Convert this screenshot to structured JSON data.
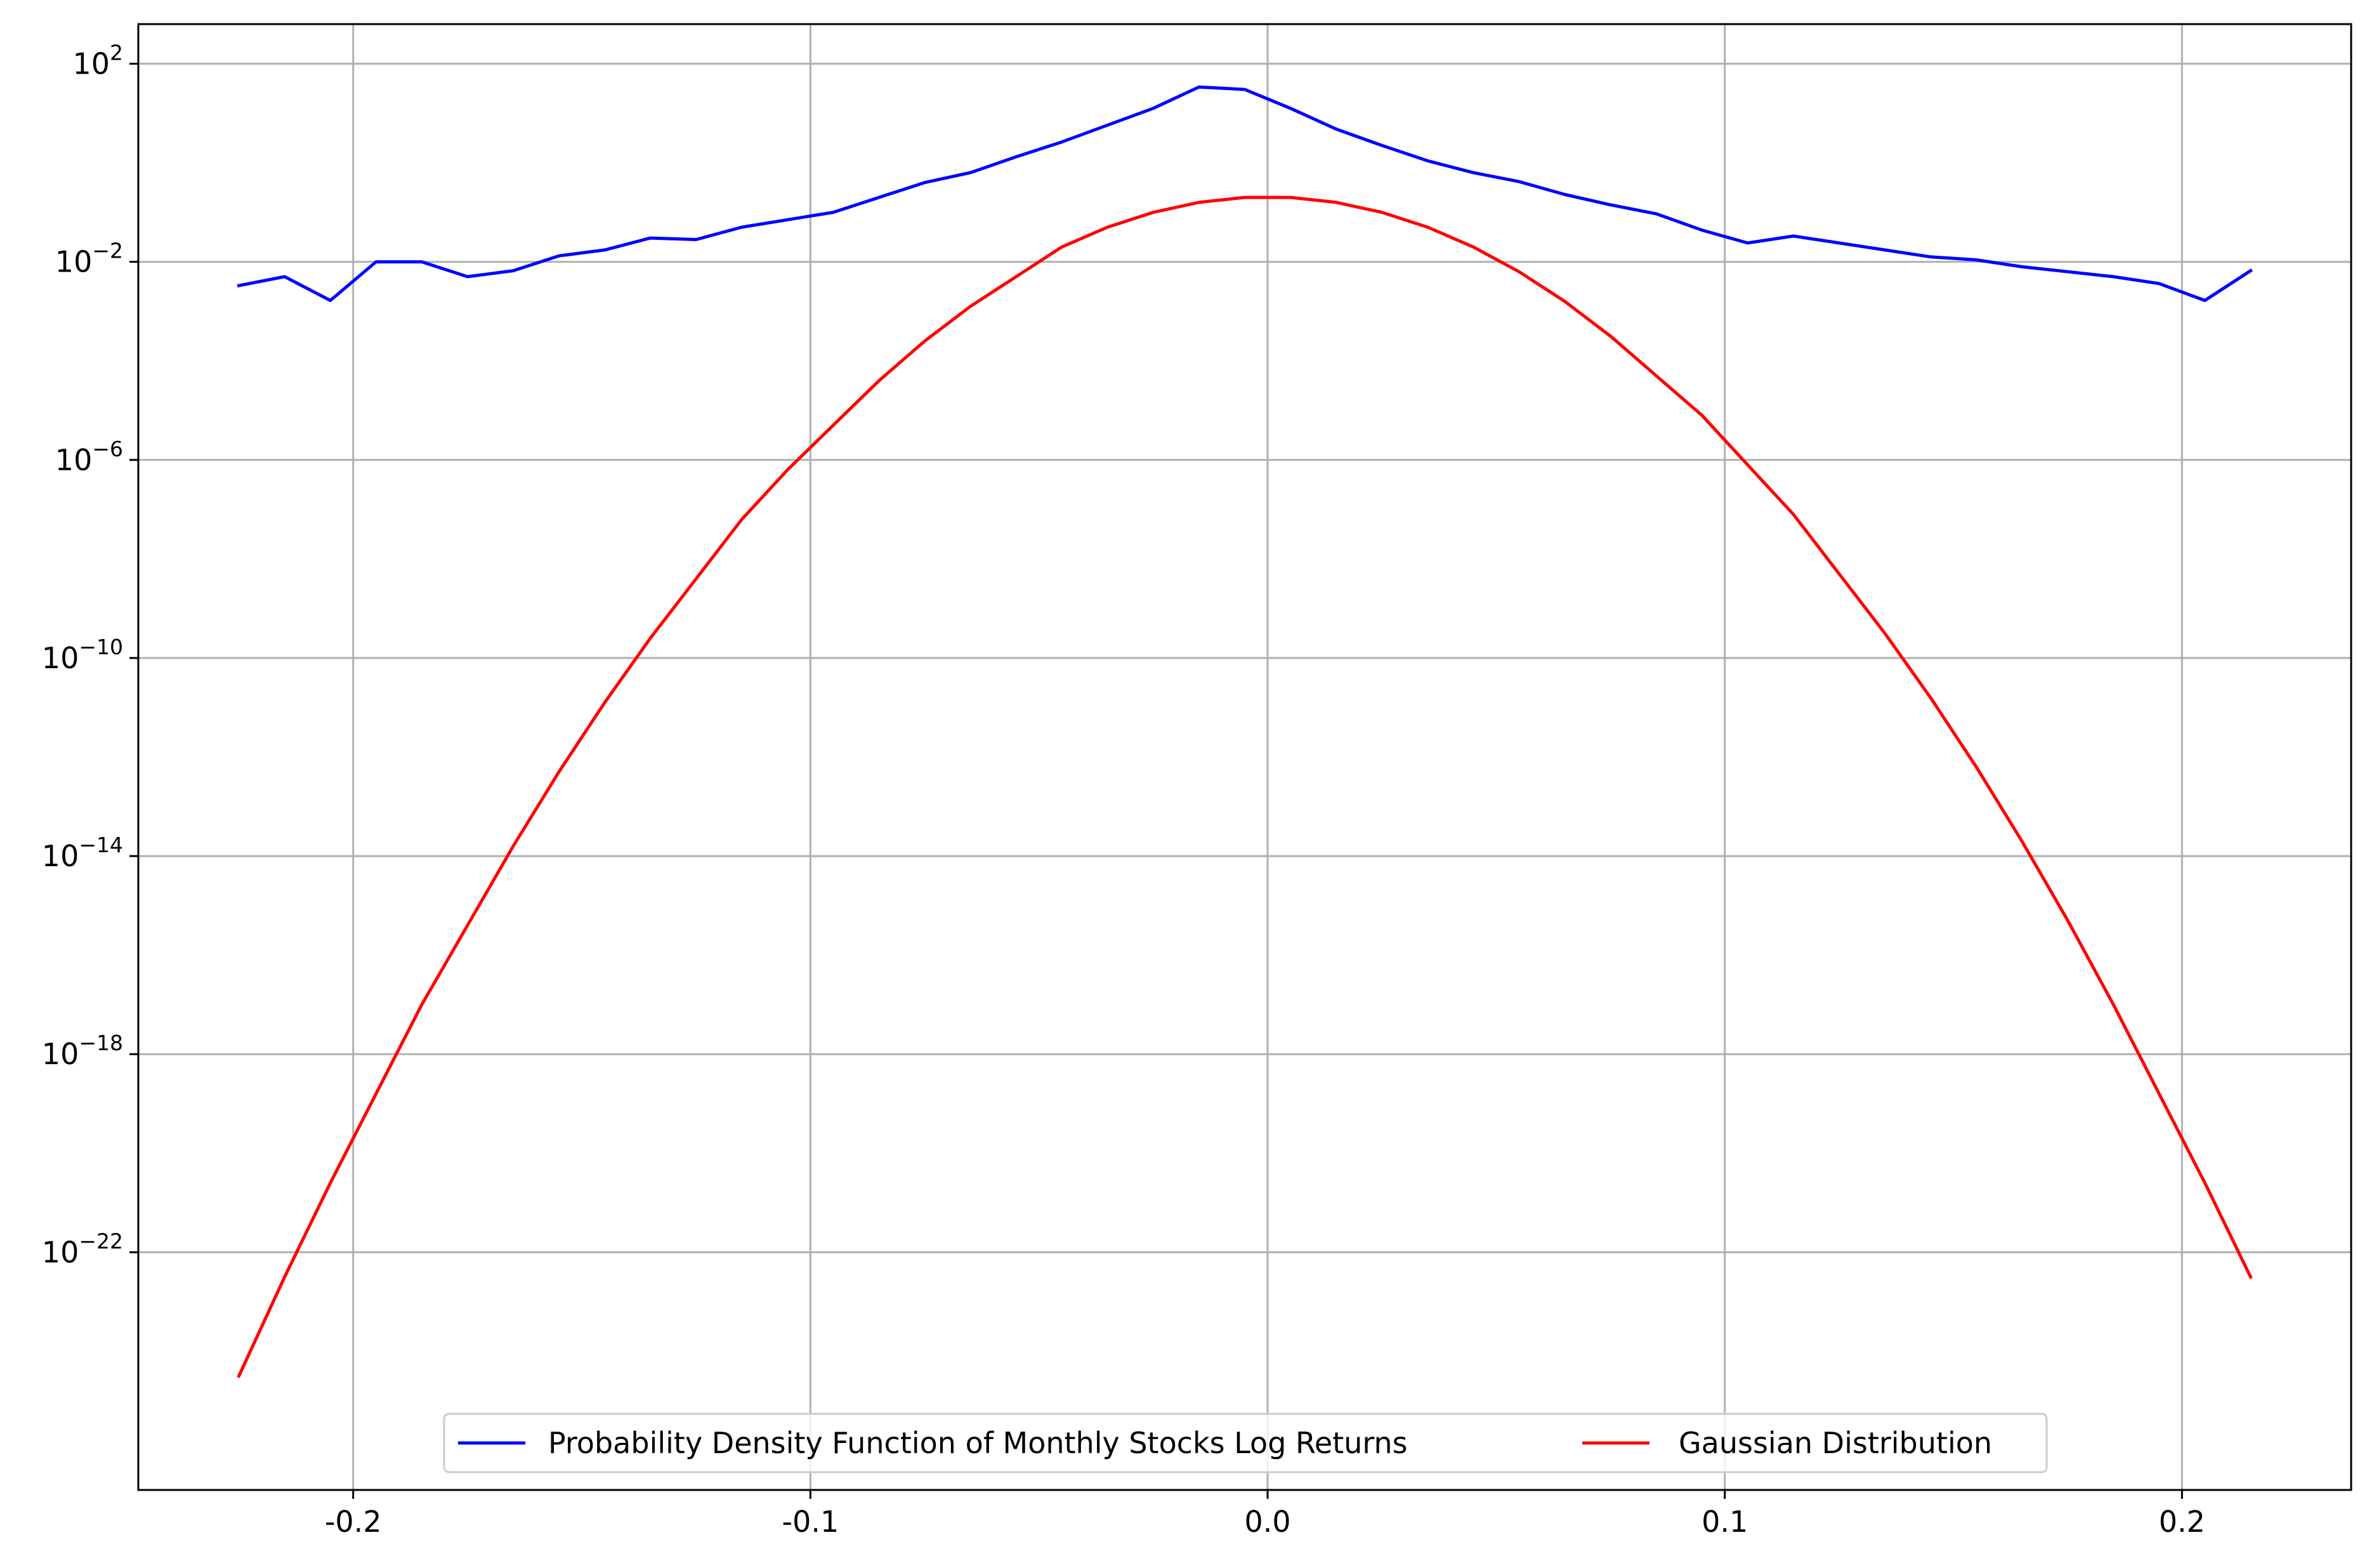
{
  "chart_data": {
    "type": "line",
    "title": "",
    "xlabel": "",
    "ylabel": "",
    "xlim": [
      -0.247,
      0.237
    ],
    "ylim_log10": [
      -26.8,
      2.8
    ],
    "y_scale": "log",
    "grid": true,
    "legend": {
      "placement": "lower-center",
      "columns": 2
    },
    "x_ticks": [
      {
        "value": -0.2,
        "label": "-0.2"
      },
      {
        "value": -0.1,
        "label": "-0.1"
      },
      {
        "value": 0.0,
        "label": "0.0"
      },
      {
        "value": 0.1,
        "label": "0.1"
      },
      {
        "value": 0.2,
        "label": "0.2"
      }
    ],
    "y_ticks": [
      {
        "exp": 2,
        "base": "10",
        "sup": "2"
      },
      {
        "exp": -2,
        "base": "10",
        "sup": "−2"
      },
      {
        "exp": -6,
        "base": "10",
        "sup": "−6"
      },
      {
        "exp": -10,
        "base": "10",
        "sup": "−10"
      },
      {
        "exp": -14,
        "base": "10",
        "sup": "−14"
      },
      {
        "exp": -18,
        "base": "10",
        "sup": "−18"
      },
      {
        "exp": -22,
        "base": "10",
        "sup": "−22"
      }
    ],
    "x": [
      -0.225,
      -0.215,
      -0.205,
      -0.195,
      -0.185,
      -0.175,
      -0.165,
      -0.155,
      -0.145,
      -0.135,
      -0.125,
      -0.115,
      -0.105,
      -0.095,
      -0.085,
      -0.075,
      -0.065,
      -0.055,
      -0.045,
      -0.035,
      -0.025,
      -0.015,
      -0.005,
      0.005,
      0.015,
      0.025,
      0.035,
      0.045,
      0.055,
      0.065,
      0.075,
      0.085,
      0.095,
      0.105,
      0.115,
      0.125,
      0.135,
      0.145,
      0.155,
      0.165,
      0.175,
      0.185,
      0.195,
      0.205,
      0.215
    ],
    "series": [
      {
        "name": "Probability Density Function of Monthly Stocks Log Returns",
        "color": "#0000ff",
        "y_log10": [
          -2.48,
          -2.3,
          -2.78,
          -2.0,
          -2.0,
          -2.3,
          -2.18,
          -1.88,
          -1.76,
          -1.52,
          -1.55,
          -1.3,
          -1.15,
          -1.0,
          -0.7,
          -0.4,
          -0.2,
          0.12,
          0.42,
          0.76,
          1.1,
          1.53,
          1.48,
          1.1,
          0.68,
          0.35,
          0.04,
          -0.2,
          -0.38,
          -0.64,
          -0.85,
          -1.03,
          -1.36,
          -1.62,
          -1.48,
          -1.62,
          -1.76,
          -1.9,
          -1.96,
          -2.1,
          -2.2,
          -2.3,
          -2.44,
          -2.78,
          -2.18
        ]
      },
      {
        "name": "Gaussian Distribution",
        "color": "#ff0000",
        "y_log10": [
          -24.5,
          -22.5,
          -20.6,
          -18.8,
          -17.0,
          -15.4,
          -13.8,
          -12.3,
          -10.9,
          -9.6,
          -8.4,
          -7.2,
          -6.2,
          -5.3,
          -4.4,
          -3.6,
          -2.9,
          -2.3,
          -1.7,
          -1.3,
          -1.0,
          -0.8,
          -0.7,
          -0.7,
          -0.8,
          -1.0,
          -1.3,
          -1.7,
          -2.2,
          -2.8,
          -3.5,
          -4.3,
          -5.1,
          -6.1,
          -7.1,
          -8.3,
          -9.5,
          -10.8,
          -12.2,
          -13.7,
          -15.3,
          -17.0,
          -18.8,
          -20.6,
          -22.5
        ]
      }
    ]
  }
}
